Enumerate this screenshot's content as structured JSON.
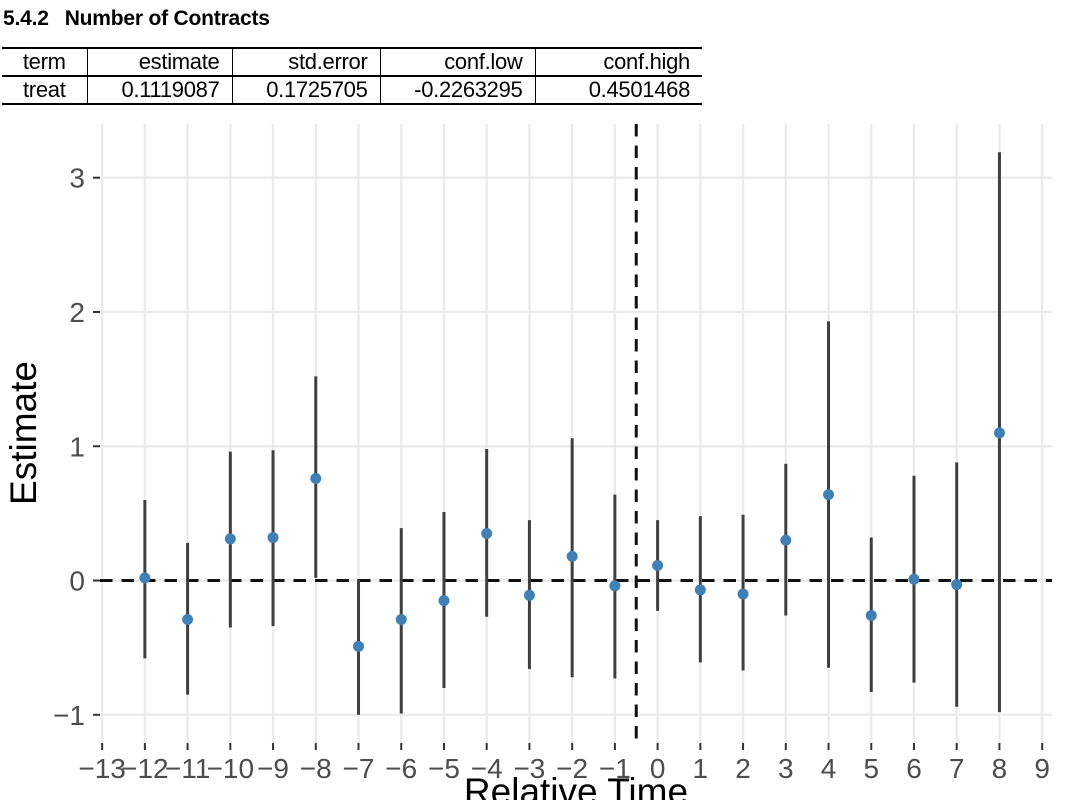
{
  "heading": {
    "number": "5.4.2",
    "title": "Number of Contracts"
  },
  "summary_table": {
    "columns": [
      "term",
      "estimate",
      "std.error",
      "conf.low",
      "conf.high"
    ],
    "rows": [
      [
        "treat",
        "0.1119087",
        "0.1725705",
        "-0.2263295",
        "0.4501468"
      ]
    ]
  },
  "chart_data": {
    "type": "scatter",
    "title": "",
    "xlabel": "Relative Time",
    "ylabel": "Estimate",
    "xlim": [
      -13.05,
      9.23
    ],
    "ylim": [
      -1.21,
      3.4
    ],
    "grid": "major-only",
    "legend": "none",
    "zero_line_y": 0,
    "treatment_line_x": -0.5,
    "x_ticks": [
      {
        "v": -13,
        "label": "−13"
      },
      {
        "v": -12,
        "label": "−12"
      },
      {
        "v": -11,
        "label": "−11"
      },
      {
        "v": -10,
        "label": "−10"
      },
      {
        "v": -9,
        "label": "−9"
      },
      {
        "v": -8,
        "label": "−8"
      },
      {
        "v": -7,
        "label": "−7"
      },
      {
        "v": -6,
        "label": "−6"
      },
      {
        "v": -5,
        "label": "−5"
      },
      {
        "v": -4,
        "label": "−4"
      },
      {
        "v": -3,
        "label": "−3"
      },
      {
        "v": -2,
        "label": "−2"
      },
      {
        "v": -1,
        "label": "−1"
      },
      {
        "v": 0,
        "label": "0"
      },
      {
        "v": 1,
        "label": "1"
      },
      {
        "v": 2,
        "label": "2"
      },
      {
        "v": 3,
        "label": "3"
      },
      {
        "v": 4,
        "label": "4"
      },
      {
        "v": 5,
        "label": "5"
      },
      {
        "v": 6,
        "label": "6"
      },
      {
        "v": 7,
        "label": "7"
      },
      {
        "v": 8,
        "label": "8"
      },
      {
        "v": 9,
        "label": "9"
      }
    ],
    "y_ticks": [
      {
        "v": -1,
        "label": "−1"
      },
      {
        "v": 0,
        "label": "0"
      },
      {
        "v": 1,
        "label": "1"
      },
      {
        "v": 2,
        "label": "2"
      },
      {
        "v": 3,
        "label": "3"
      }
    ],
    "points": [
      {
        "x": -12,
        "estimate": 0.02,
        "conf_low": -0.58,
        "conf_high": 0.6
      },
      {
        "x": -11,
        "estimate": -0.29,
        "conf_low": -0.85,
        "conf_high": 0.28
      },
      {
        "x": -10,
        "estimate": 0.31,
        "conf_low": -0.35,
        "conf_high": 0.96
      },
      {
        "x": -9,
        "estimate": 0.32,
        "conf_low": -0.34,
        "conf_high": 0.97
      },
      {
        "x": -8,
        "estimate": 0.76,
        "conf_low": 0.02,
        "conf_high": 1.52
      },
      {
        "x": -7,
        "estimate": -0.49,
        "conf_low": -1.0,
        "conf_high": 0.01
      },
      {
        "x": -6,
        "estimate": -0.29,
        "conf_low": -0.99,
        "conf_high": 0.39
      },
      {
        "x": -5,
        "estimate": -0.15,
        "conf_low": -0.8,
        "conf_high": 0.51
      },
      {
        "x": -4,
        "estimate": 0.35,
        "conf_low": -0.27,
        "conf_high": 0.98
      },
      {
        "x": -3,
        "estimate": -0.11,
        "conf_low": -0.66,
        "conf_high": 0.45
      },
      {
        "x": -2,
        "estimate": 0.18,
        "conf_low": -0.72,
        "conf_high": 1.06
      },
      {
        "x": -1,
        "estimate": -0.04,
        "conf_low": -0.73,
        "conf_high": 0.64
      },
      {
        "x": 0,
        "estimate": 0.112,
        "conf_low": -0.226,
        "conf_high": 0.45
      },
      {
        "x": 1,
        "estimate": -0.07,
        "conf_low": -0.61,
        "conf_high": 0.48
      },
      {
        "x": 2,
        "estimate": -0.1,
        "conf_low": -0.67,
        "conf_high": 0.49
      },
      {
        "x": 3,
        "estimate": 0.3,
        "conf_low": -0.26,
        "conf_high": 0.87
      },
      {
        "x": 4,
        "estimate": 0.64,
        "conf_low": -0.65,
        "conf_high": 1.93
      },
      {
        "x": 5,
        "estimate": -0.26,
        "conf_low": -0.83,
        "conf_high": 0.32
      },
      {
        "x": 6,
        "estimate": 0.01,
        "conf_low": -0.76,
        "conf_high": 0.78
      },
      {
        "x": 7,
        "estimate": -0.03,
        "conf_low": -0.94,
        "conf_high": 0.88
      },
      {
        "x": 8,
        "estimate": 1.1,
        "conf_low": -0.98,
        "conf_high": 3.19
      }
    ],
    "colors": {
      "point": "#4080b5",
      "error_bar": "#3f3f3f",
      "gridline": "#ebebeb",
      "tick": "#333333",
      "tick_label": "#4d4d4d",
      "reference_line": "#111111"
    }
  }
}
